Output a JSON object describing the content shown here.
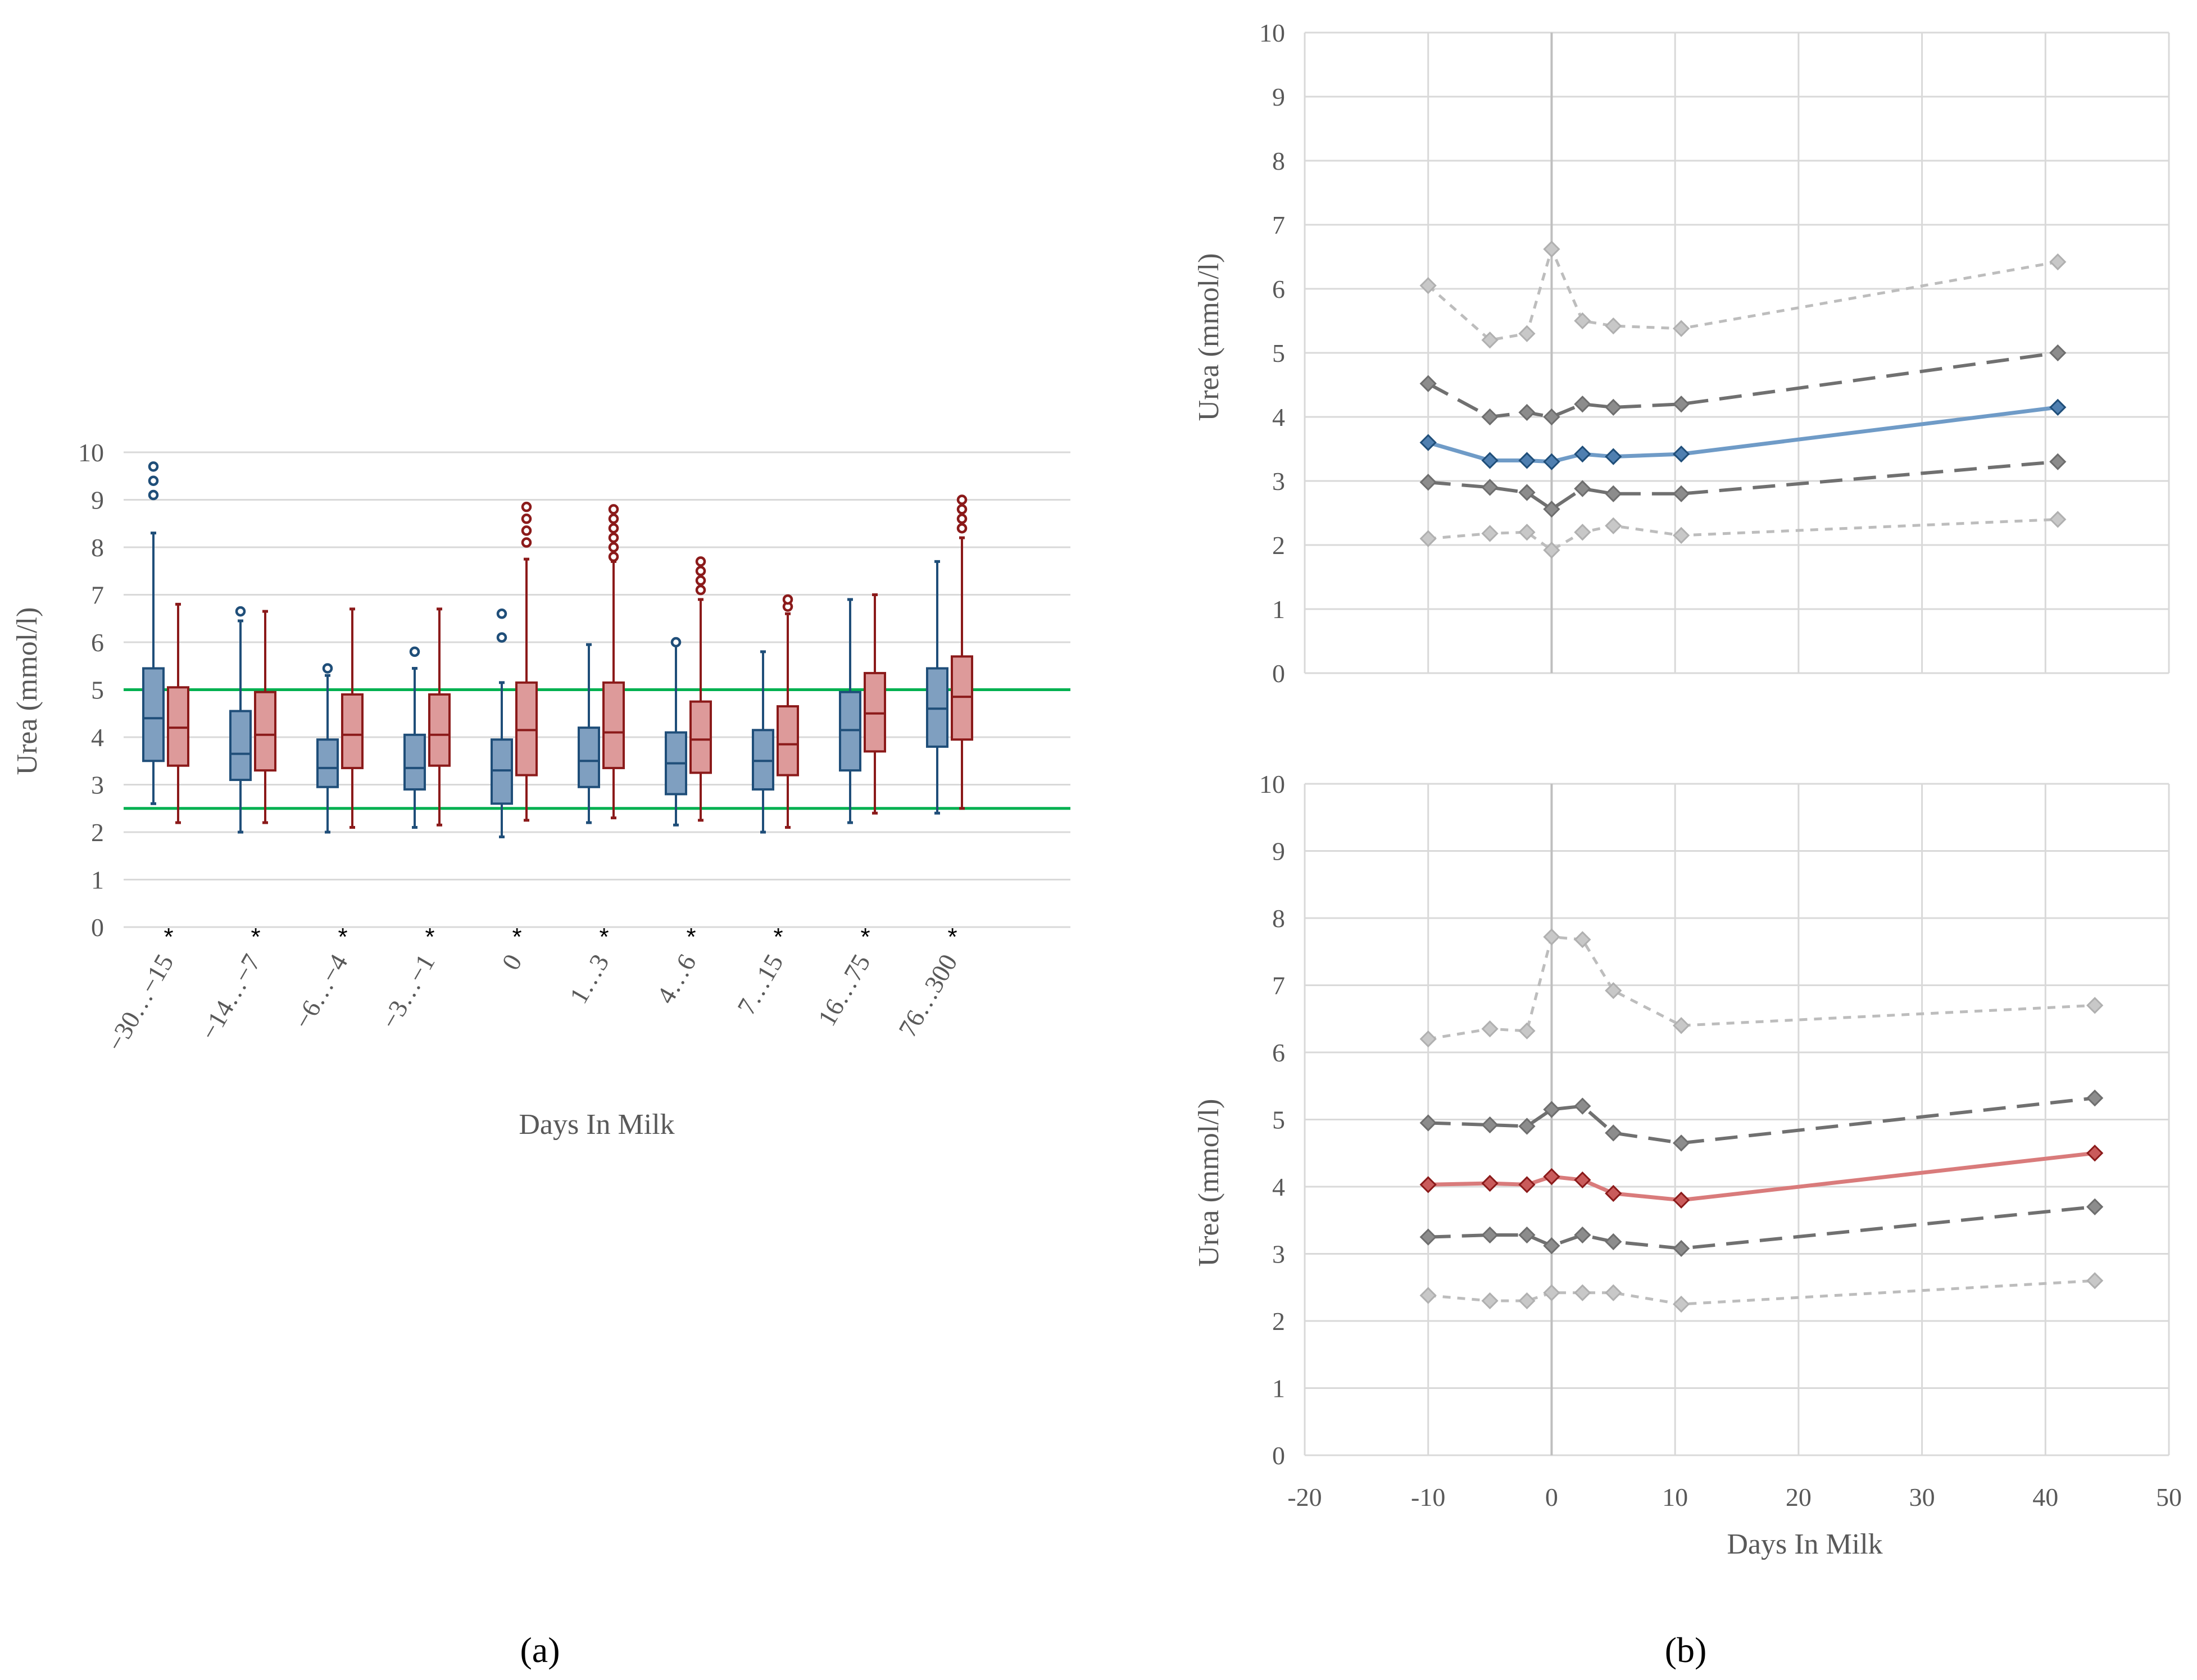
{
  "colors": {
    "blue": "#1f4e79",
    "blue_fill": "#7f9fc0",
    "red": "#8b1a1a",
    "red_fill": "#dd9a9a",
    "reference": "#00b050",
    "grid": "#d9d9d9",
    "median_line_blue": "#6f9bc7",
    "median_line_red": "#d97b7b",
    "quartile_line": "#707070",
    "percentile_line": "#bdbdbd",
    "quartile_marker": "#8c8c8c",
    "percentile_marker": "#c8c8c8"
  },
  "panel_labels": {
    "a": "(a)",
    "b": "(b)"
  },
  "chart_data": [
    {
      "type": "box",
      "panel": "(a)",
      "xlabel": "Days In Milk",
      "ylabel": "Urea (mmol/l)",
      "ylim": [
        0,
        10
      ],
      "yticks": [
        "0",
        "1",
        "2",
        "3",
        "4",
        "5",
        "6",
        "7",
        "8",
        "9",
        "10"
      ],
      "categories": [
        "−30…−15",
        "−14…−7",
        "−6…−4",
        "−3…−1",
        "0",
        "1…3",
        "4…6",
        "7…15",
        "16…75",
        "76…300"
      ],
      "significance": [
        "*",
        "*",
        "*",
        "*",
        "*",
        "*",
        "*",
        "*",
        "*",
        "*"
      ],
      "reference_lines": [
        2.5,
        5.0
      ],
      "series": [
        {
          "name": "blue",
          "boxes": [
            {
              "min": 2.6,
              "q1": 3.5,
              "median": 4.4,
              "q3": 5.45,
              "max": 8.3,
              "outliers": [
                9.1,
                9.4,
                9.7
              ]
            },
            {
              "min": 2.0,
              "q1": 3.1,
              "median": 3.65,
              "q3": 4.55,
              "max": 6.45,
              "outliers": [
                6.65
              ]
            },
            {
              "min": 2.0,
              "q1": 2.95,
              "median": 3.35,
              "q3": 3.95,
              "max": 5.3,
              "outliers": [
                5.45
              ]
            },
            {
              "min": 2.1,
              "q1": 2.9,
              "median": 3.35,
              "q3": 4.05,
              "max": 5.45,
              "outliers": [
                5.8
              ]
            },
            {
              "min": 1.9,
              "q1": 2.6,
              "median": 3.3,
              "q3": 3.95,
              "max": 5.15,
              "outliers": [
                6.1,
                6.6
              ]
            },
            {
              "min": 2.2,
              "q1": 2.95,
              "median": 3.5,
              "q3": 4.2,
              "max": 5.95,
              "outliers": []
            },
            {
              "min": 2.15,
              "q1": 2.8,
              "median": 3.45,
              "q3": 4.1,
              "max": 5.95,
              "outliers": [
                6.0
              ]
            },
            {
              "min": 2.0,
              "q1": 2.9,
              "median": 3.5,
              "q3": 4.15,
              "max": 5.8,
              "outliers": []
            },
            {
              "min": 2.2,
              "q1": 3.3,
              "median": 4.15,
              "q3": 4.95,
              "max": 6.9,
              "outliers": []
            },
            {
              "min": 2.4,
              "q1": 3.8,
              "median": 4.6,
              "q3": 5.45,
              "max": 7.7,
              "outliers": []
            }
          ]
        },
        {
          "name": "red",
          "boxes": [
            {
              "min": 2.2,
              "q1": 3.4,
              "median": 4.2,
              "q3": 5.05,
              "max": 6.8,
              "outliers": []
            },
            {
              "min": 2.2,
              "q1": 3.3,
              "median": 4.05,
              "q3": 4.95,
              "max": 6.65,
              "outliers": []
            },
            {
              "min": 2.1,
              "q1": 3.35,
              "median": 4.05,
              "q3": 4.9,
              "max": 6.7,
              "outliers": []
            },
            {
              "min": 2.15,
              "q1": 3.4,
              "median": 4.05,
              "q3": 4.9,
              "max": 6.7,
              "outliers": []
            },
            {
              "min": 2.25,
              "q1": 3.2,
              "median": 4.15,
              "q3": 5.15,
              "max": 7.75,
              "outliers": [
                8.1,
                8.35,
                8.6,
                8.85
              ]
            },
            {
              "min": 2.3,
              "q1": 3.35,
              "median": 4.1,
              "q3": 5.15,
              "max": 7.7,
              "outliers": [
                7.8,
                8.0,
                8.2,
                8.4,
                8.6,
                8.8
              ]
            },
            {
              "min": 2.25,
              "q1": 3.25,
              "median": 3.95,
              "q3": 4.75,
              "max": 6.9,
              "outliers": [
                7.1,
                7.3,
                7.5,
                7.7
              ]
            },
            {
              "min": 2.1,
              "q1": 3.2,
              "median": 3.85,
              "q3": 4.65,
              "max": 6.6,
              "outliers": [
                6.75,
                6.9
              ]
            },
            {
              "min": 2.4,
              "q1": 3.7,
              "median": 4.5,
              "q3": 5.35,
              "max": 7.0,
              "outliers": []
            },
            {
              "min": 2.5,
              "q1": 3.95,
              "median": 4.85,
              "q3": 5.7,
              "max": 8.2,
              "outliers": [
                8.4,
                8.6,
                8.8,
                9.0
              ]
            }
          ]
        }
      ]
    },
    {
      "type": "line",
      "panel": "(b) top",
      "xlabel": "",
      "ylabel": "Urea (mmol/l)",
      "xlim": [
        -20,
        50
      ],
      "ylim": [
        0,
        10
      ],
      "yticks": [
        "0",
        "1",
        "2",
        "3",
        "4",
        "5",
        "6",
        "7",
        "8",
        "9",
        "10"
      ],
      "series": [
        {
          "name": "upper percentile",
          "style": "dotted",
          "color": "#bdbdbd",
          "x": [
            -10,
            -5,
            -2,
            0,
            2.5,
            5,
            10.5,
            41
          ],
          "y": [
            6.05,
            5.2,
            5.3,
            6.62,
            5.5,
            5.42,
            5.38,
            6.42
          ]
        },
        {
          "name": "upper quartile",
          "style": "dashed",
          "color": "#707070",
          "x": [
            -10,
            -5,
            -2,
            0,
            2.5,
            5,
            10.5,
            41
          ],
          "y": [
            4.52,
            4.0,
            4.07,
            4.0,
            4.2,
            4.15,
            4.2,
            5.0
          ]
        },
        {
          "name": "median",
          "style": "solid",
          "color": "#6f9bc7",
          "x": [
            -10,
            -5,
            -2,
            0,
            2.5,
            5,
            10.5,
            41
          ],
          "y": [
            3.6,
            3.32,
            3.32,
            3.3,
            3.42,
            3.38,
            3.42,
            4.15
          ]
        },
        {
          "name": "lower quartile",
          "style": "dashed",
          "color": "#707070",
          "x": [
            -10,
            -5,
            -2,
            0,
            2.5,
            5,
            10.5,
            41
          ],
          "y": [
            2.98,
            2.9,
            2.82,
            2.56,
            2.88,
            2.8,
            2.8,
            3.3
          ]
        },
        {
          "name": "lower percentile",
          "style": "dotted",
          "color": "#bdbdbd",
          "x": [
            -10,
            -5,
            -2,
            0,
            2.5,
            5,
            10.5,
            41
          ],
          "y": [
            2.1,
            2.18,
            2.2,
            1.92,
            2.2,
            2.3,
            2.15,
            2.4
          ]
        }
      ]
    },
    {
      "type": "line",
      "panel": "(b) bottom",
      "xlabel": "Days In Milk",
      "ylabel": "Urea (mmol/l)",
      "xlim": [
        -20,
        50
      ],
      "ylim": [
        0,
        10
      ],
      "xticks": [
        "-20",
        "-10",
        "0",
        "10",
        "20",
        "30",
        "40",
        "50"
      ],
      "yticks": [
        "0",
        "1",
        "2",
        "3",
        "4",
        "5",
        "6",
        "7",
        "8",
        "9",
        "10"
      ],
      "series": [
        {
          "name": "upper percentile",
          "style": "dotted",
          "color": "#bdbdbd",
          "x": [
            -10,
            -5,
            -2,
            0,
            2.5,
            5,
            10.5,
            44
          ],
          "y": [
            6.2,
            6.35,
            6.32,
            7.72,
            7.68,
            6.92,
            6.4,
            6.7
          ]
        },
        {
          "name": "upper quartile",
          "style": "dashed",
          "color": "#707070",
          "x": [
            -10,
            -5,
            -2,
            0,
            2.5,
            5,
            10.5,
            44
          ],
          "y": [
            4.95,
            4.92,
            4.9,
            5.15,
            5.2,
            4.8,
            4.65,
            5.32
          ]
        },
        {
          "name": "median",
          "style": "solid",
          "color": "#d97b7b",
          "x": [
            -10,
            -5,
            -2,
            0,
            2.5,
            5,
            10.5,
            44
          ],
          "y": [
            4.03,
            4.05,
            4.03,
            4.15,
            4.1,
            3.9,
            3.8,
            4.5
          ]
        },
        {
          "name": "lower quartile",
          "style": "dashed",
          "color": "#707070",
          "x": [
            -10,
            -5,
            -2,
            0,
            2.5,
            5,
            10.5,
            44
          ],
          "y": [
            3.25,
            3.28,
            3.28,
            3.12,
            3.28,
            3.18,
            3.08,
            3.7
          ]
        },
        {
          "name": "lower percentile",
          "style": "dotted",
          "color": "#bdbdbd",
          "x": [
            -10,
            -5,
            -2,
            0,
            2.5,
            5,
            10.5,
            44
          ],
          "y": [
            2.38,
            2.3,
            2.3,
            2.42,
            2.42,
            2.42,
            2.25,
            2.6
          ]
        }
      ]
    }
  ]
}
